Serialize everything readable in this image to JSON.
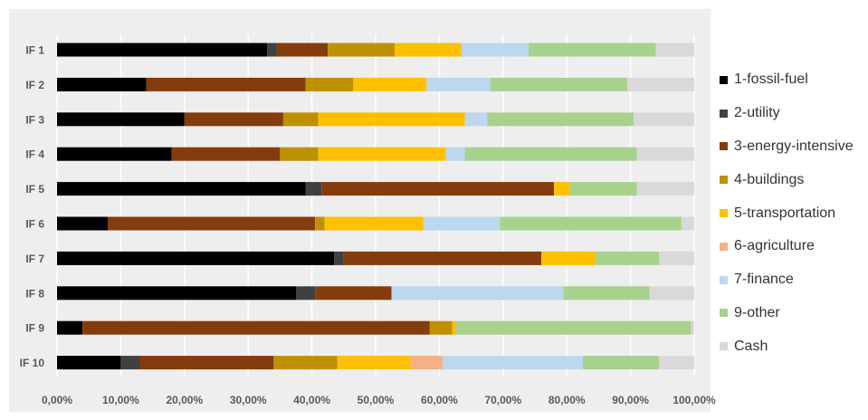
{
  "chart_data": {
    "type": "bar",
    "orientation": "horizontal",
    "stacked": true,
    "categories": [
      "IF 1",
      "IF 2",
      "IF 3",
      "IF 4",
      "IF 5",
      "IF 6",
      "IF 7",
      "IF 8",
      "IF 9",
      "IF 10"
    ],
    "series": [
      {
        "name": "1-fossil-fuel",
        "color": "#000000",
        "values": [
          33.0,
          14.0,
          20.0,
          18.0,
          39.0,
          8.0,
          43.5,
          37.5,
          4.0,
          10.0
        ]
      },
      {
        "name": "2-utility",
        "color": "#404040",
        "values": [
          1.5,
          0,
          0,
          0,
          2.5,
          0,
          1.5,
          3.0,
          0,
          3.0
        ]
      },
      {
        "name": "3-energy-intensive",
        "color": "#843c0c",
        "values": [
          8.0,
          25.0,
          15.5,
          17.0,
          36.5,
          32.5,
          31.0,
          12.0,
          54.5,
          21.0
        ]
      },
      {
        "name": "4-buildings",
        "color": "#bf9000",
        "values": [
          10.5,
          7.5,
          5.5,
          6.0,
          0,
          1.5,
          0,
          0,
          3.5,
          10.0
        ]
      },
      {
        "name": "5-transportation",
        "color": "#ffc000",
        "values": [
          10.5,
          11.5,
          23.0,
          20.0,
          2.5,
          15.5,
          8.5,
          0,
          0.5,
          11.5
        ]
      },
      {
        "name": "6-agriculture",
        "color": "#f4b183",
        "values": [
          0,
          0,
          0,
          0,
          0,
          0,
          0,
          0,
          0,
          5.0
        ]
      },
      {
        "name": "7-finance",
        "color": "#bdd7ee",
        "values": [
          10.5,
          10.0,
          3.5,
          3.0,
          0,
          12.0,
          0,
          27.0,
          0,
          22.0
        ]
      },
      {
        "name": "9-other",
        "color": "#a9d18e",
        "values": [
          20.0,
          21.5,
          23.0,
          27.0,
          10.5,
          28.5,
          10.0,
          13.5,
          37.0,
          12.0
        ]
      },
      {
        "name": "Cash",
        "color": "#d9d9d9",
        "values": [
          6.0,
          10.5,
          9.5,
          9.0,
          9.0,
          2.0,
          5.5,
          7.0,
          0.5,
          5.5
        ]
      }
    ],
    "xlim": [
      0,
      100
    ],
    "x_ticks": [
      "0,00%",
      "10,00%",
      "20,00%",
      "30,00%",
      "40,00%",
      "50,00%",
      "60,00%",
      "70,00%",
      "80,00%",
      "90,00%",
      "100,00%"
    ],
    "x_tick_values": [
      0,
      10,
      20,
      30,
      40,
      50,
      60,
      70,
      80,
      90,
      100
    ],
    "grid": true,
    "legend_position": "right",
    "plot_background": "#eeeeee",
    "gridline_color": "#ffffff",
    "axis_text_color": "#595959"
  }
}
